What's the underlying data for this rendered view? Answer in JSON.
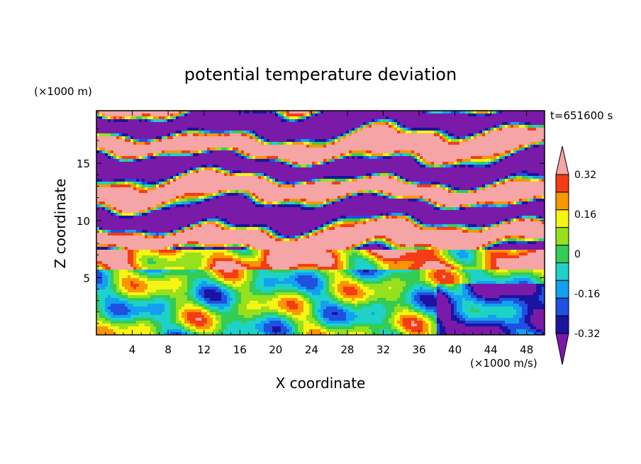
{
  "chart_data": {
    "type": "heatmap",
    "title": "potential temperature deviation",
    "xlabel": "X coordinate",
    "ylabel": "Z coordinate",
    "x_unit": "(×1000 m/s)",
    "y_unit": "(×1000 m)",
    "time_label": "t=651600 s",
    "xlim": [
      0,
      50
    ],
    "ylim": [
      0,
      19.6
    ],
    "x_ticks": [
      4,
      8,
      12,
      16,
      20,
      24,
      28,
      32,
      36,
      40,
      44,
      48
    ],
    "y_ticks": [
      5,
      10,
      15
    ],
    "colorbar": {
      "tick_labels": [
        "0.32",
        "0.16",
        "0",
        "-0.16",
        "-0.32"
      ],
      "tick_values": [
        0.32,
        0.16,
        0,
        -0.16,
        -0.32
      ],
      "levels": [
        -0.4,
        -0.32,
        -0.24,
        -0.16,
        -0.08,
        0,
        0.08,
        0.16,
        0.24,
        0.32,
        0.4
      ],
      "colors": [
        "#7a1aa8",
        "#1a14a0",
        "#2050e0",
        "#14a0f0",
        "#1ed2c8",
        "#33cc55",
        "#96e01e",
        "#f5f514",
        "#fa9600",
        "#f53c14",
        "#f5a5a5"
      ],
      "under_color": "#7a1aa8",
      "over_color": "#f5a5a5"
    },
    "field_description_levels": {
      "upper_layer_z_range": [
        7.5,
        19.6
      ],
      "lower_layer_z_range": [
        0,
        7.5
      ]
    }
  }
}
